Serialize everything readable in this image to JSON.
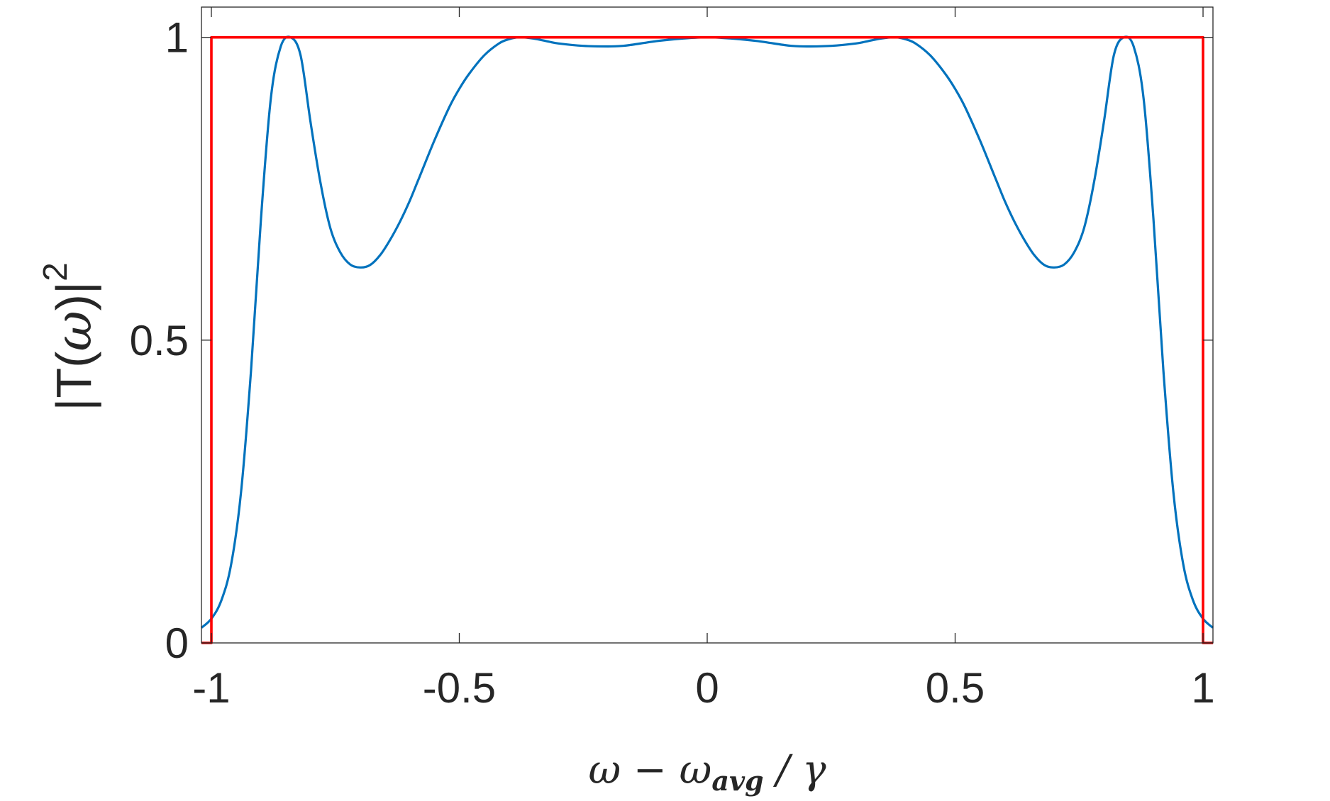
{
  "chart_data": {
    "type": "line",
    "xlabel": {
      "omega": "ω",
      "minus": " − ",
      "omega_sub": "ω",
      "sub": "avg",
      "slash_gamma": " / γ"
    },
    "ylabel": {
      "left": "|T(",
      "omega": "ω",
      "right": ")|",
      "exp": "2"
    },
    "xlim": [
      -1.02,
      1.02
    ],
    "ylim": [
      0,
      1.05
    ],
    "xticks": [
      -1,
      -0.5,
      0,
      0.5,
      1
    ],
    "xtick_labels": [
      "-1",
      "-0.5",
      "0",
      "0.5",
      "1"
    ],
    "yticks": [
      0,
      0.5,
      1
    ],
    "ytick_labels": [
      "0",
      "0.5",
      "1"
    ],
    "grid": false,
    "series": [
      {
        "color": "#0072BD",
        "x": [
          -1.02,
          -1.0,
          -0.98,
          -0.96,
          -0.94,
          -0.92,
          -0.9,
          -0.88,
          -0.86,
          -0.84,
          -0.82,
          -0.8,
          -0.78,
          -0.76,
          -0.74,
          -0.72,
          -0.7,
          -0.68,
          -0.66,
          -0.64,
          -0.62,
          -0.6,
          -0.58,
          -0.55,
          -0.52,
          -0.5,
          -0.48,
          -0.45,
          -0.42,
          -0.4,
          -0.38,
          -0.35,
          -0.32,
          -0.3,
          -0.25,
          -0.2,
          -0.17,
          -0.15,
          -0.1,
          -0.05,
          0.0,
          0.05,
          0.1,
          0.15,
          0.17,
          0.2,
          0.25,
          0.3,
          0.32,
          0.35,
          0.38,
          0.4,
          0.42,
          0.45,
          0.48,
          0.5,
          0.52,
          0.55,
          0.58,
          0.6,
          0.62,
          0.64,
          0.66,
          0.68,
          0.7,
          0.72,
          0.74,
          0.76,
          0.78,
          0.8,
          0.82,
          0.84,
          0.86,
          0.88,
          0.9,
          0.92,
          0.94,
          0.96,
          0.98,
          1.0,
          1.02
        ],
        "y": [
          0.025,
          0.04,
          0.07,
          0.13,
          0.25,
          0.45,
          0.7,
          0.9,
          0.985,
          1.0,
          0.97,
          0.86,
          0.76,
          0.685,
          0.645,
          0.625,
          0.62,
          0.624,
          0.64,
          0.665,
          0.695,
          0.73,
          0.77,
          0.83,
          0.885,
          0.915,
          0.94,
          0.97,
          0.99,
          0.997,
          1.0,
          0.998,
          0.993,
          0.99,
          0.986,
          0.985,
          0.986,
          0.988,
          0.994,
          0.998,
          1.0,
          0.998,
          0.994,
          0.988,
          0.986,
          0.985,
          0.986,
          0.99,
          0.993,
          0.998,
          1.0,
          0.997,
          0.99,
          0.97,
          0.94,
          0.915,
          0.885,
          0.83,
          0.77,
          0.73,
          0.695,
          0.665,
          0.64,
          0.624,
          0.62,
          0.625,
          0.645,
          0.685,
          0.76,
          0.86,
          0.97,
          1.0,
          0.985,
          0.9,
          0.7,
          0.45,
          0.25,
          0.13,
          0.07,
          0.04,
          0.025
        ]
      },
      {
        "color": "#FF0000",
        "x": [
          -1.02,
          -1.0,
          -1.0,
          1.0,
          1.0,
          1.02
        ],
        "y": [
          0,
          0,
          1,
          1,
          0,
          0
        ]
      }
    ]
  }
}
